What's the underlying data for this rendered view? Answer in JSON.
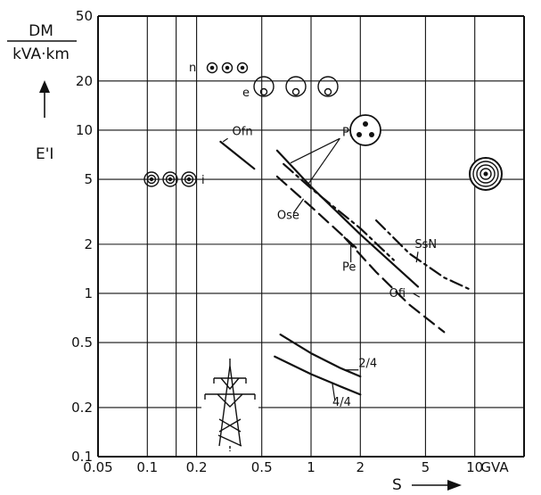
{
  "chart_data": {
    "type": "line",
    "x_scale": "log",
    "y_scale": "log",
    "xlim": [
      0.05,
      20
    ],
    "ylim": [
      0.1,
      50
    ],
    "grid": true,
    "x_ticks": [
      0.05,
      0.1,
      0.2,
      0.5,
      1,
      2,
      5,
      10
    ],
    "x_tick_labels": [
      "0.05",
      "0.1",
      "0.2",
      "0.5",
      "1",
      "2",
      "5",
      "10"
    ],
    "x_unit": "GVA",
    "xlabel": "S",
    "y_ticks": [
      0.1,
      0.2,
      0.5,
      1,
      2,
      5,
      10,
      20,
      50
    ],
    "y_tick_labels": [
      "0.1",
      "0.2",
      "0.5",
      "1",
      "2",
      "5",
      "10",
      "20",
      "50"
    ],
    "ylabel": "E'I",
    "y_unit_num": "DM",
    "y_unit_den": "kVA·km",
    "series": [
      {
        "name": "Ofn",
        "style": "solid",
        "x": [
          0.28,
          0.45
        ],
        "y": [
          8.5,
          5.8
        ]
      },
      {
        "name": "Pn",
        "style": "solid",
        "x": [
          0.62,
          1.0,
          2.0,
          4.5
        ],
        "y": [
          7.5,
          4.5,
          2.3,
          1.1
        ]
      },
      {
        "name": "Pe",
        "style": "dashdot",
        "x": [
          0.68,
          1.0,
          2.0,
          3.2
        ],
        "y": [
          6.2,
          4.4,
          2.5,
          1.6
        ]
      },
      {
        "name": "Ose",
        "style": "dashed",
        "x": [
          0.62,
          1.0,
          2.0
        ],
        "y": [
          5.2,
          3.4,
          1.8
        ]
      },
      {
        "name": "Ofi",
        "style": "dashed",
        "x": [
          1.6,
          2.5,
          4.0,
          6.5
        ],
        "y": [
          2.2,
          1.35,
          0.85,
          0.58
        ]
      },
      {
        "name": "SsN",
        "style": "dashdot",
        "x": [
          2.5,
          4.0,
          6.5,
          9.5
        ],
        "y": [
          2.8,
          1.75,
          1.25,
          1.05
        ]
      },
      {
        "name": "2/4",
        "style": "solid",
        "x": [
          0.65,
          1.0,
          1.5,
          2.0
        ],
        "y": [
          0.56,
          0.43,
          0.35,
          0.31
        ]
      },
      {
        "name": "4/4",
        "style": "solid",
        "x": [
          0.6,
          1.0,
          1.5,
          2.0
        ],
        "y": [
          0.41,
          0.32,
          0.27,
          0.24
        ]
      }
    ],
    "annotations": [
      "n",
      "e",
      "i"
    ]
  }
}
